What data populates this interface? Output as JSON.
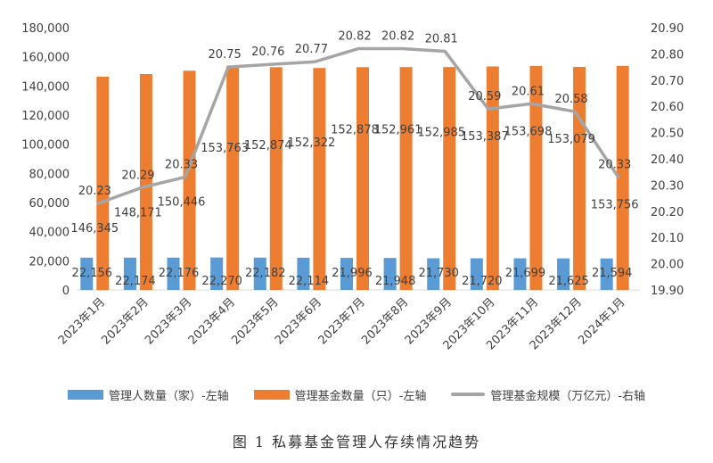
{
  "colors": {
    "managers": "#5b9bd5",
    "funds": "#ed7d31",
    "scale": "#a5a5a5",
    "text": "#404040"
  },
  "caption": "图 1  私募基金管理人存续情况趋势",
  "chart_data": {
    "type": "bar",
    "categories": [
      "2023年1月",
      "2023年2月",
      "2023年3月",
      "2023年4月",
      "2023年5月",
      "2023年6月",
      "2023年7月",
      "2023年8月",
      "2023年9月",
      "2023年10月",
      "2023年11月",
      "2023年12月",
      "2024年1月"
    ],
    "series": [
      {
        "name": "管理人数量（家）-左轴",
        "type": "bar",
        "axis": "left",
        "values": [
          22156,
          22174,
          22176,
          22270,
          22182,
          22114,
          21996,
          21948,
          21730,
          21720,
          21699,
          21625,
          21594
        ],
        "labels": [
          "22,156",
          "22,174",
          "22,176",
          "22,270",
          "22,182",
          "22,114",
          "21,996",
          "21,948",
          "21,730",
          "21,720",
          "21,699",
          "21,625",
          "21,594"
        ]
      },
      {
        "name": "管理基金数量（只）-左轴",
        "type": "bar",
        "axis": "left",
        "values": [
          146345,
          148171,
          150446,
          153763,
          152874,
          152322,
          152878,
          152961,
          152985,
          153387,
          153698,
          153079,
          153756
        ],
        "labels": [
          "146,345",
          "148,171",
          "150,446",
          "153,763",
          "152,874",
          "152,322",
          "152,878",
          "152,961",
          "152,985",
          "153,387",
          "153,698",
          "153,079",
          "153,756"
        ]
      },
      {
        "name": "管理基金规模（万亿元）-右轴",
        "type": "line",
        "axis": "right",
        "values": [
          20.23,
          20.29,
          20.33,
          20.75,
          20.76,
          20.77,
          20.82,
          20.82,
          20.81,
          20.59,
          20.61,
          20.58,
          20.33
        ],
        "labels": [
          "20.23",
          "20.29",
          "20.33",
          "20.75",
          "20.76",
          "20.77",
          "20.82",
          "20.82",
          "20.81",
          "20.59",
          "20.61",
          "20.58",
          "20.33"
        ]
      }
    ],
    "y_left": {
      "min": 0,
      "max": 180000,
      "ticks": [
        "0",
        "20,000",
        "40,000",
        "60,000",
        "80,000",
        "100,000",
        "120,000",
        "140,000",
        "160,000",
        "180,000"
      ]
    },
    "y_right": {
      "min": 19.9,
      "max": 20.9,
      "ticks": [
        "19.90",
        "20.00",
        "20.10",
        "20.20",
        "20.30",
        "20.40",
        "20.50",
        "20.60",
        "20.70",
        "20.80",
        "20.90"
      ]
    },
    "grid": false,
    "legend_position": "bottom"
  }
}
